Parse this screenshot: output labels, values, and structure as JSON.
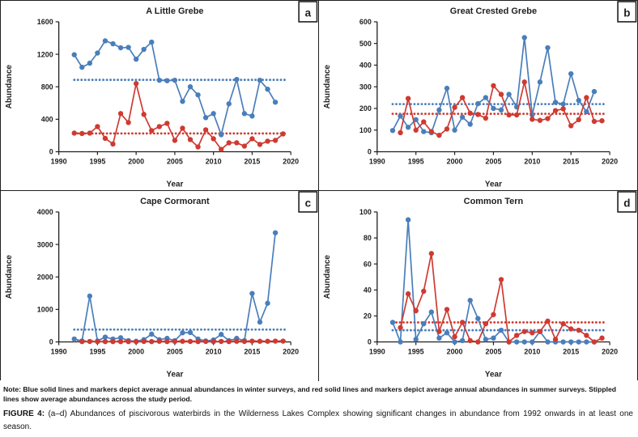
{
  "colors": {
    "winter": "#4a7ebb",
    "summer": "#cf3a31",
    "axis": "#1f1f1f",
    "text": "#1f1f1f"
  },
  "figure_note": "Note: Blue solid lines and markers depict average annual abundances in winter surveys, and red solid lines and markers depict average annual abundances in summer surveys. Stippled lines show average abundances across the study period.",
  "figure_caption": {
    "label": "FIGURE 4:",
    "text": "(a–d) Abundances of piscivorous waterbirds in the Wilderness Lakes Complex showing significant changes in abundance from 1992 onwards in at least one season."
  },
  "chart_data": [
    {
      "type": "line",
      "panel": "a",
      "title": "A Little Grebe",
      "xlabel": "Year",
      "ylabel": "Abundance",
      "xlim": [
        1990,
        2020
      ],
      "ylim": [
        0,
        1600
      ],
      "xticks": [
        1990,
        1995,
        2000,
        2005,
        2010,
        2015,
        2020
      ],
      "yticks": [
        0,
        400,
        800,
        1200,
        1600
      ],
      "x": [
        1992,
        1993,
        1994,
        1995,
        1996,
        1997,
        1998,
        1999,
        2000,
        2001,
        2002,
        2003,
        2004,
        2005,
        2006,
        2007,
        2008,
        2009,
        2010,
        2011,
        2012,
        2013,
        2014,
        2015,
        2016,
        2017,
        2018,
        2019
      ],
      "series": [
        {
          "name": "winter",
          "label": "Winter average annual abundance",
          "color_key": "winter",
          "average": 885,
          "values": [
            1195,
            1040,
            1090,
            1215,
            1365,
            1330,
            1280,
            1285,
            1140,
            1260,
            1350,
            880,
            875,
            880,
            620,
            800,
            700,
            420,
            470,
            210,
            590,
            890,
            470,
            440,
            880,
            770,
            610,
            null
          ]
        },
        {
          "name": "summer",
          "label": "Summer average annual abundance",
          "color_key": "summer",
          "average": 225,
          "values": [
            230,
            225,
            230,
            310,
            165,
            95,
            470,
            360,
            840,
            460,
            260,
            310,
            350,
            140,
            290,
            150,
            60,
            270,
            160,
            30,
            110,
            110,
            70,
            160,
            90,
            130,
            140,
            220
          ]
        }
      ]
    },
    {
      "type": "line",
      "panel": "b",
      "title": "Great Crested Grebe",
      "xlabel": "Year",
      "ylabel": "Abundance",
      "xlim": [
        1990,
        2020
      ],
      "ylim": [
        0,
        600
      ],
      "xticks": [
        1990,
        1995,
        2000,
        2005,
        2010,
        2015,
        2020
      ],
      "yticks": [
        0,
        100,
        200,
        300,
        400,
        500,
        600
      ],
      "x": [
        1992,
        1993,
        1994,
        1995,
        1996,
        1997,
        1998,
        1999,
        2000,
        2001,
        2002,
        2003,
        2004,
        2005,
        2006,
        2007,
        2008,
        2009,
        2010,
        2011,
        2012,
        2013,
        2014,
        2015,
        2016,
        2017,
        2018,
        2019
      ],
      "series": [
        {
          "name": "winter",
          "label": "Winter average annual abundance",
          "color_key": "winter",
          "average": 220,
          "values": [
            98,
            165,
            113,
            148,
            93,
            88,
            193,
            293,
            100,
            160,
            127,
            222,
            250,
            200,
            193,
            265,
            207,
            527,
            170,
            322,
            480,
            228,
            220,
            360,
            237,
            185,
            278,
            null
          ]
        },
        {
          "name": "summer",
          "label": "Summer average annual abundance",
          "color_key": "summer",
          "average": 175,
          "values": [
            null,
            88,
            246,
            100,
            138,
            93,
            76,
            105,
            205,
            250,
            178,
            172,
            155,
            305,
            265,
            170,
            170,
            322,
            150,
            145,
            153,
            190,
            198,
            120,
            148,
            250,
            140,
            143
          ]
        }
      ]
    },
    {
      "type": "line",
      "panel": "c",
      "title": "Cape Cormorant",
      "xlabel": "Year",
      "ylabel": "Abundance",
      "xlim": [
        1990,
        2020
      ],
      "ylim": [
        0,
        4000
      ],
      "xticks": [
        1990,
        1995,
        2000,
        2005,
        2010,
        2015,
        2020
      ],
      "yticks": [
        0,
        1000,
        2000,
        3000,
        4000
      ],
      "x": [
        1992,
        1993,
        1994,
        1995,
        1996,
        1997,
        1998,
        1999,
        2000,
        2001,
        2002,
        2003,
        2004,
        2005,
        2006,
        2007,
        2008,
        2009,
        2010,
        2011,
        2012,
        2013,
        2014,
        2015,
        2016,
        2017,
        2018,
        2019
      ],
      "series": [
        {
          "name": "winter",
          "label": "Winter average annual abundance",
          "color_key": "winter",
          "average": 380,
          "values": [
            90,
            30,
            1410,
            30,
            150,
            90,
            130,
            40,
            20,
            70,
            240,
            70,
            110,
            40,
            280,
            290,
            90,
            30,
            60,
            230,
            40,
            110,
            40,
            1490,
            610,
            1190,
            3360,
            null
          ]
        },
        {
          "name": "summer",
          "label": "Summer average annual abundance",
          "color_key": "summer",
          "average": 20,
          "values": [
            null,
            10,
            15,
            10,
            10,
            10,
            10,
            10,
            10,
            15,
            10,
            20,
            10,
            15,
            20,
            15,
            10,
            15,
            10,
            15,
            10,
            20,
            15,
            25,
            20,
            20,
            25,
            25
          ]
        }
      ]
    },
    {
      "type": "line",
      "panel": "d",
      "title": "Common Tern",
      "xlabel": "Year",
      "ylabel": "Abundance",
      "xlim": [
        1990,
        2020
      ],
      "ylim": [
        0,
        100
      ],
      "xticks": [
        1990,
        1995,
        2000,
        2005,
        2010,
        2015,
        2020
      ],
      "yticks": [
        0,
        20,
        40,
        60,
        80,
        100
      ],
      "x": [
        1992,
        1993,
        1994,
        1995,
        1996,
        1997,
        1998,
        1999,
        2000,
        2001,
        2002,
        2003,
        2004,
        2005,
        2006,
        2007,
        2008,
        2009,
        2010,
        2011,
        2012,
        2013,
        2014,
        2015,
        2016,
        2017,
        2018,
        2019
      ],
      "series": [
        {
          "name": "winter",
          "label": "Winter average annual abundance",
          "color_key": "winter",
          "average": 9,
          "values": [
            15,
            0,
            94,
            2,
            14,
            23,
            3,
            7,
            0,
            1,
            32,
            18,
            2,
            3,
            9,
            0,
            0,
            0,
            0,
            8,
            0,
            0,
            0,
            0,
            0,
            0,
            0,
            null
          ]
        },
        {
          "name": "summer",
          "label": "Summer average annual abundance",
          "color_key": "summer",
          "average": 15,
          "values": [
            null,
            11,
            37,
            24,
            39,
            68,
            8,
            25,
            4,
            15,
            1,
            0,
            14,
            21,
            48,
            0,
            5,
            8,
            7,
            8,
            16,
            2,
            14,
            10,
            9,
            5,
            0,
            3
          ]
        }
      ]
    }
  ]
}
